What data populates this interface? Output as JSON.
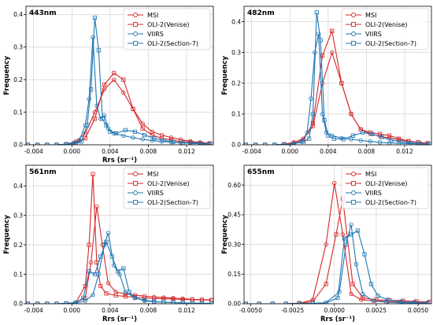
{
  "colors": {
    "red": "#d62728",
    "blue": "#1f77b4",
    "grid": "#cccccc"
  },
  "chart_data": [
    {
      "type": "line",
      "panel_label": "443nm",
      "xlabel": "Rrs (sr⁻¹)",
      "ylabel": "Frequency",
      "xlim": [
        -0.0048,
        0.0148
      ],
      "ylim": [
        0,
        0.425
      ],
      "xticks": [
        -0.004,
        0.0,
        0.004,
        0.008,
        0.012
      ],
      "xticklabels": [
        "-0.004",
        "0.000",
        "0.004",
        "0.008",
        "0.012"
      ],
      "yticks": [
        0,
        0.1,
        0.2,
        0.3,
        0.4
      ],
      "yticklabels": [
        "0.0",
        "0.1",
        "0.2",
        "0.3",
        "0.4"
      ],
      "legend_position": "top-right",
      "series": [
        {
          "name": "MSI",
          "color": "red",
          "marker": "circle",
          "x": [
            -0.0046,
            -0.0036,
            -0.0026,
            -0.0016,
            -0.0006,
            0.0004,
            0.0014,
            0.0024,
            0.0034,
            0.0044,
            0.0054,
            0.0064,
            0.0074,
            0.0084,
            0.0094,
            0.0104,
            0.0114,
            0.0124,
            0.0134,
            0.0144
          ],
          "y": [
            0,
            0,
            0,
            0,
            0.002,
            0.01,
            0.035,
            0.1,
            0.17,
            0.2,
            0.16,
            0.11,
            0.065,
            0.04,
            0.03,
            0.022,
            0.016,
            0.011,
            0.007,
            0.005
          ]
        },
        {
          "name": "OLI-2(Venise)",
          "color": "red",
          "marker": "square",
          "x": [
            -0.0046,
            -0.0036,
            -0.0026,
            -0.0016,
            -0.0006,
            0.0004,
            0.0014,
            0.0024,
            0.0034,
            0.0044,
            0.0054,
            0.0064,
            0.0074,
            0.0084,
            0.0094,
            0.0104,
            0.0114,
            0.0124,
            0.0134,
            0.0144
          ],
          "y": [
            0,
            0,
            0,
            0,
            0.002,
            0.006,
            0.02,
            0.08,
            0.185,
            0.22,
            0.2,
            0.11,
            0.05,
            0.03,
            0.02,
            0.015,
            0.01,
            0.008,
            0.006,
            0.004
          ]
        },
        {
          "name": "VIIRS",
          "color": "blue",
          "marker": "circle",
          "x": [
            -0.0046,
            -0.0036,
            -0.0026,
            -0.0016,
            -0.0006,
            0.0002,
            0.0008,
            0.0014,
            0.0018,
            0.0022,
            0.0026,
            0.003,
            0.0034,
            0.0038,
            0.0044,
            0.0054,
            0.0064,
            0.0074,
            0.0084,
            0.0094,
            0.0104,
            0.0114,
            0.0124,
            0.0134,
            0.0144
          ],
          "y": [
            0,
            0,
            0,
            0,
            0.002,
            0.006,
            0.015,
            0.06,
            0.14,
            0.33,
            0.12,
            0.08,
            0.09,
            0.05,
            0.035,
            0.028,
            0.022,
            0.017,
            0.013,
            0.01,
            0.008,
            0.006,
            0.005,
            0.004,
            0.003
          ]
        },
        {
          "name": "OLI-2(Section-7)",
          "color": "blue",
          "marker": "square",
          "x": [
            -0.0046,
            -0.0036,
            -0.0026,
            -0.0016,
            -0.0006,
            0.0004,
            0.001,
            0.0016,
            0.002,
            0.0024,
            0.0028,
            0.0032,
            0.0036,
            0.004,
            0.0046,
            0.0056,
            0.0066,
            0.0076,
            0.0086,
            0.0096,
            0.0106,
            0.0116,
            0.0126,
            0.0136,
            0.0146
          ],
          "y": [
            0,
            0,
            0,
            0,
            0.001,
            0.004,
            0.01,
            0.06,
            0.17,
            0.39,
            0.29,
            0.08,
            0.06,
            0.04,
            0.035,
            0.045,
            0.04,
            0.03,
            0.02,
            0.014,
            0.009,
            0.006,
            0.004,
            0.003,
            0.002
          ]
        }
      ]
    },
    {
      "type": "line",
      "panel_label": "482nm",
      "xlabel": "",
      "ylabel": "Frequency",
      "xlim": [
        -0.0048,
        0.0148
      ],
      "ylim": [
        0,
        0.45
      ],
      "xticks": [
        -0.004,
        0.0,
        0.004,
        0.008,
        0.012
      ],
      "xticklabels": [
        "-0.004",
        "0.000",
        "0.004",
        "0.008",
        "0.012"
      ],
      "yticks": [
        0,
        0.1,
        0.2,
        0.3,
        0.4
      ],
      "yticklabels": [
        "0.0",
        "0.1",
        "0.2",
        "0.3",
        "0.4"
      ],
      "legend_position": "top-right",
      "series": [
        {
          "name": "MSI",
          "color": "red",
          "marker": "circle",
          "x": [
            -0.0046,
            -0.0036,
            -0.0026,
            -0.0016,
            -0.0006,
            0.0004,
            0.0014,
            0.0024,
            0.0034,
            0.0044,
            0.0054,
            0.0064,
            0.0074,
            0.0084,
            0.0094,
            0.0104,
            0.0114,
            0.0124,
            0.0134,
            0.0144
          ],
          "y": [
            0,
            0,
            0,
            0,
            0.002,
            0.008,
            0.02,
            0.06,
            0.2,
            0.3,
            0.2,
            0.1,
            0.05,
            0.035,
            0.028,
            0.022,
            0.016,
            0.011,
            0.008,
            0.005
          ]
        },
        {
          "name": "OLI-2(Venise)",
          "color": "red",
          "marker": "square",
          "x": [
            -0.0046,
            -0.0036,
            -0.0026,
            -0.0016,
            -0.0006,
            0.0004,
            0.0014,
            0.0024,
            0.0034,
            0.0044,
            0.0054,
            0.0064,
            0.0074,
            0.0084,
            0.0094,
            0.0104,
            0.0114,
            0.0124,
            0.0134,
            0.0144
          ],
          "y": [
            0,
            0,
            0,
            0,
            0.002,
            0.005,
            0.015,
            0.07,
            0.29,
            0.37,
            0.2,
            0.1,
            0.05,
            0.04,
            0.035,
            0.03,
            0.02,
            0.012,
            0.008,
            0.005
          ]
        },
        {
          "name": "VIIRS",
          "color": "blue",
          "marker": "circle",
          "x": [
            -0.0046,
            -0.0036,
            -0.0026,
            -0.0016,
            -0.0006,
            0.0004,
            0.0012,
            0.0018,
            0.0022,
            0.0026,
            0.003,
            0.0034,
            0.0038,
            0.0044,
            0.0054,
            0.0064,
            0.0074,
            0.0084,
            0.0094,
            0.0104,
            0.0114,
            0.0124,
            0.0134,
            0.0144
          ],
          "y": [
            0,
            0,
            0,
            0,
            0.001,
            0.004,
            0.01,
            0.04,
            0.15,
            0.3,
            0.36,
            0.1,
            0.04,
            0.03,
            0.022,
            0.018,
            0.014,
            0.011,
            0.008,
            0.006,
            0.005,
            0.004,
            0.003,
            0.002
          ]
        },
        {
          "name": "OLI-2(Section-7)",
          "color": "blue",
          "marker": "square",
          "x": [
            -0.0046,
            -0.0036,
            -0.0026,
            -0.0016,
            -0.0006,
            0.0004,
            0.0014,
            0.002,
            0.0024,
            0.0028,
            0.0032,
            0.0036,
            0.004,
            0.0046,
            0.0056,
            0.0066,
            0.0076,
            0.0086,
            0.0096,
            0.0106,
            0.0116,
            0.0126,
            0.0136,
            0.0146
          ],
          "y": [
            0,
            0,
            0,
            0,
            0.001,
            0.003,
            0.01,
            0.02,
            0.1,
            0.43,
            0.34,
            0.08,
            0.03,
            0.02,
            0.018,
            0.03,
            0.04,
            0.035,
            0.025,
            0.015,
            0.01,
            0.006,
            0.004,
            0.002
          ]
        }
      ]
    },
    {
      "type": "line",
      "panel_label": "561nm",
      "xlabel": "Rrs (sr⁻¹)",
      "ylabel": "Frequency",
      "xlim": [
        -0.0048,
        0.0148
      ],
      "ylim": [
        0,
        0.47
      ],
      "xticks": [
        -0.004,
        0.0,
        0.004,
        0.008,
        0.012
      ],
      "xticklabels": [
        "-0.004",
        "0.000",
        "0.004",
        "0.008",
        "0.012"
      ],
      "yticks": [
        0,
        0.1,
        0.2,
        0.3,
        0.4
      ],
      "yticklabels": [
        "0.0",
        "0.1",
        "0.2",
        "0.3",
        "0.4"
      ],
      "legend_position": "top-right",
      "series": [
        {
          "name": "MSI",
          "color": "red",
          "marker": "circle",
          "x": [
            -0.0046,
            -0.0036,
            -0.0026,
            -0.0016,
            -0.0006,
            0.0004,
            0.0014,
            0.002,
            0.0026,
            0.0032,
            0.0038,
            0.0046,
            0.0056,
            0.0066,
            0.0076,
            0.0086,
            0.0096,
            0.0106,
            0.0116,
            0.0126,
            0.0136,
            0.0146
          ],
          "y": [
            0,
            0,
            0,
            0,
            0.001,
            0.004,
            0.02,
            0.14,
            0.33,
            0.2,
            0.07,
            0.04,
            0.033,
            0.03,
            0.026,
            0.023,
            0.021,
            0.019,
            0.017,
            0.015,
            0.014,
            0.013
          ]
        },
        {
          "name": "OLI-2(Venise)",
          "color": "red",
          "marker": "square",
          "x": [
            -0.0046,
            -0.0036,
            -0.0026,
            -0.0016,
            -0.0006,
            0.0004,
            0.0014,
            0.0018,
            0.0022,
            0.0026,
            0.003,
            0.0036,
            0.0046,
            0.0056,
            0.0066,
            0.0076,
            0.0086,
            0.0096,
            0.0106,
            0.0116,
            0.0126,
            0.0136,
            0.0146
          ],
          "y": [
            0,
            0,
            0,
            0,
            0.001,
            0.003,
            0.06,
            0.2,
            0.44,
            0.14,
            0.06,
            0.035,
            0.028,
            0.025,
            0.022,
            0.02,
            0.018,
            0.017,
            0.016,
            0.015,
            0.014,
            0.013,
            0.012
          ]
        },
        {
          "name": "VIIRS",
          "color": "blue",
          "marker": "circle",
          "x": [
            -0.0046,
            -0.0036,
            -0.0026,
            -0.0016,
            -0.0006,
            0.0004,
            0.0014,
            0.0022,
            0.0028,
            0.0034,
            0.0038,
            0.0044,
            0.005,
            0.0056,
            0.0066,
            0.0076,
            0.0086,
            0.0096,
            0.0106,
            0.0116,
            0.0126,
            0.0136,
            0.0146
          ],
          "y": [
            0,
            0,
            0,
            0,
            0.001,
            0.002,
            0.01,
            0.03,
            0.1,
            0.2,
            0.24,
            0.13,
            0.1,
            0.04,
            0.02,
            0.01,
            0.007,
            0.005,
            0.004,
            0.003,
            0.002,
            0.002,
            0.001
          ]
        },
        {
          "name": "OLI-2(Section-7)",
          "color": "blue",
          "marker": "square",
          "x": [
            -0.0046,
            -0.0036,
            -0.0026,
            -0.0016,
            -0.0006,
            0.0004,
            0.0012,
            0.0018,
            0.0024,
            0.003,
            0.0036,
            0.0042,
            0.0048,
            0.0054,
            0.006,
            0.0066,
            0.0076,
            0.0086,
            0.0096,
            0.0106,
            0.0116,
            0.0126,
            0.0136,
            0.0146
          ],
          "y": [
            0,
            0,
            0,
            0,
            0.001,
            0.004,
            0.02,
            0.11,
            0.1,
            0.16,
            0.21,
            0.16,
            0.11,
            0.12,
            0.04,
            0.02,
            0.012,
            0.008,
            0.005,
            0.004,
            0.003,
            0.002,
            0.002,
            0.001
          ]
        }
      ]
    },
    {
      "type": "line",
      "panel_label": "655nm",
      "xlabel": "Rrs (sr⁻¹)",
      "ylabel": "Frequency",
      "xlim": [
        -0.0054,
        0.0058
      ],
      "ylim": [
        0,
        0.7
      ],
      "xticks": [
        -0.005,
        -0.0025,
        0.0,
        0.0025,
        0.005
      ],
      "xticklabels": [
        "-0.0050",
        "-0.0025",
        "0.0000",
        "0.0025",
        "0.0050"
      ],
      "yticks": [
        0,
        0.15,
        0.3,
        0.45,
        0.6
      ],
      "yticklabels": [
        "0.00",
        "0.15",
        "0.30",
        "0.45",
        "0.60"
      ],
      "legend_position": "top-right",
      "series": [
        {
          "name": "MSI",
          "color": "red",
          "marker": "circle",
          "x": [
            -0.0053,
            -0.0045,
            -0.0037,
            -0.0029,
            -0.0021,
            -0.0013,
            -0.0005,
            0.0,
            0.0005,
            0.001,
            0.0016,
            0.0024,
            0.0032,
            0.004,
            0.0048,
            0.0056
          ],
          "y": [
            0,
            0,
            0,
            0,
            0.002,
            0.02,
            0.3,
            0.61,
            0.35,
            0.05,
            0.02,
            0.015,
            0.012,
            0.01,
            0.008,
            0.006
          ]
        },
        {
          "name": "OLI-2(Venise)",
          "color": "red",
          "marker": "square",
          "x": [
            -0.0053,
            -0.0045,
            -0.0037,
            -0.0029,
            -0.0021,
            -0.0013,
            -0.0005,
            0.0001,
            0.0005,
            0.0011,
            0.0017,
            0.0025,
            0.0033,
            0.0041,
            0.0049,
            0.0057
          ],
          "y": [
            0,
            0,
            0,
            0,
            0.003,
            0.01,
            0.1,
            0.35,
            0.53,
            0.1,
            0.03,
            0.02,
            0.018,
            0.015,
            0.012,
            0.01
          ]
        },
        {
          "name": "VIIRS",
          "color": "blue",
          "marker": "circle",
          "x": [
            -0.0053,
            -0.0045,
            -0.0037,
            -0.0029,
            -0.0021,
            -0.0013,
            -0.0005,
            0.0003,
            0.0007,
            0.001,
            0.0013,
            0.0017,
            0.0023,
            0.0031,
            0.0039,
            0.0047,
            0.0055
          ],
          "y": [
            0,
            0,
            0,
            0,
            0.001,
            0.002,
            0.005,
            0.06,
            0.3,
            0.4,
            0.2,
            0.05,
            0.015,
            0.008,
            0.005,
            0.003,
            0.002
          ]
        },
        {
          "name": "OLI-2(Section-7)",
          "color": "blue",
          "marker": "square",
          "x": [
            -0.0053,
            -0.0045,
            -0.0037,
            -0.0029,
            -0.0021,
            -0.0013,
            -0.0005,
            0.0002,
            0.0006,
            0.001,
            0.0014,
            0.0018,
            0.0022,
            0.0026,
            0.0032,
            0.004,
            0.0048,
            0.0056
          ],
          "y": [
            0,
            0,
            0,
            0,
            0.001,
            0.002,
            0.004,
            0.03,
            0.33,
            0.35,
            0.37,
            0.25,
            0.1,
            0.04,
            0.02,
            0.01,
            0.006,
            0.004
          ]
        }
      ]
    }
  ]
}
